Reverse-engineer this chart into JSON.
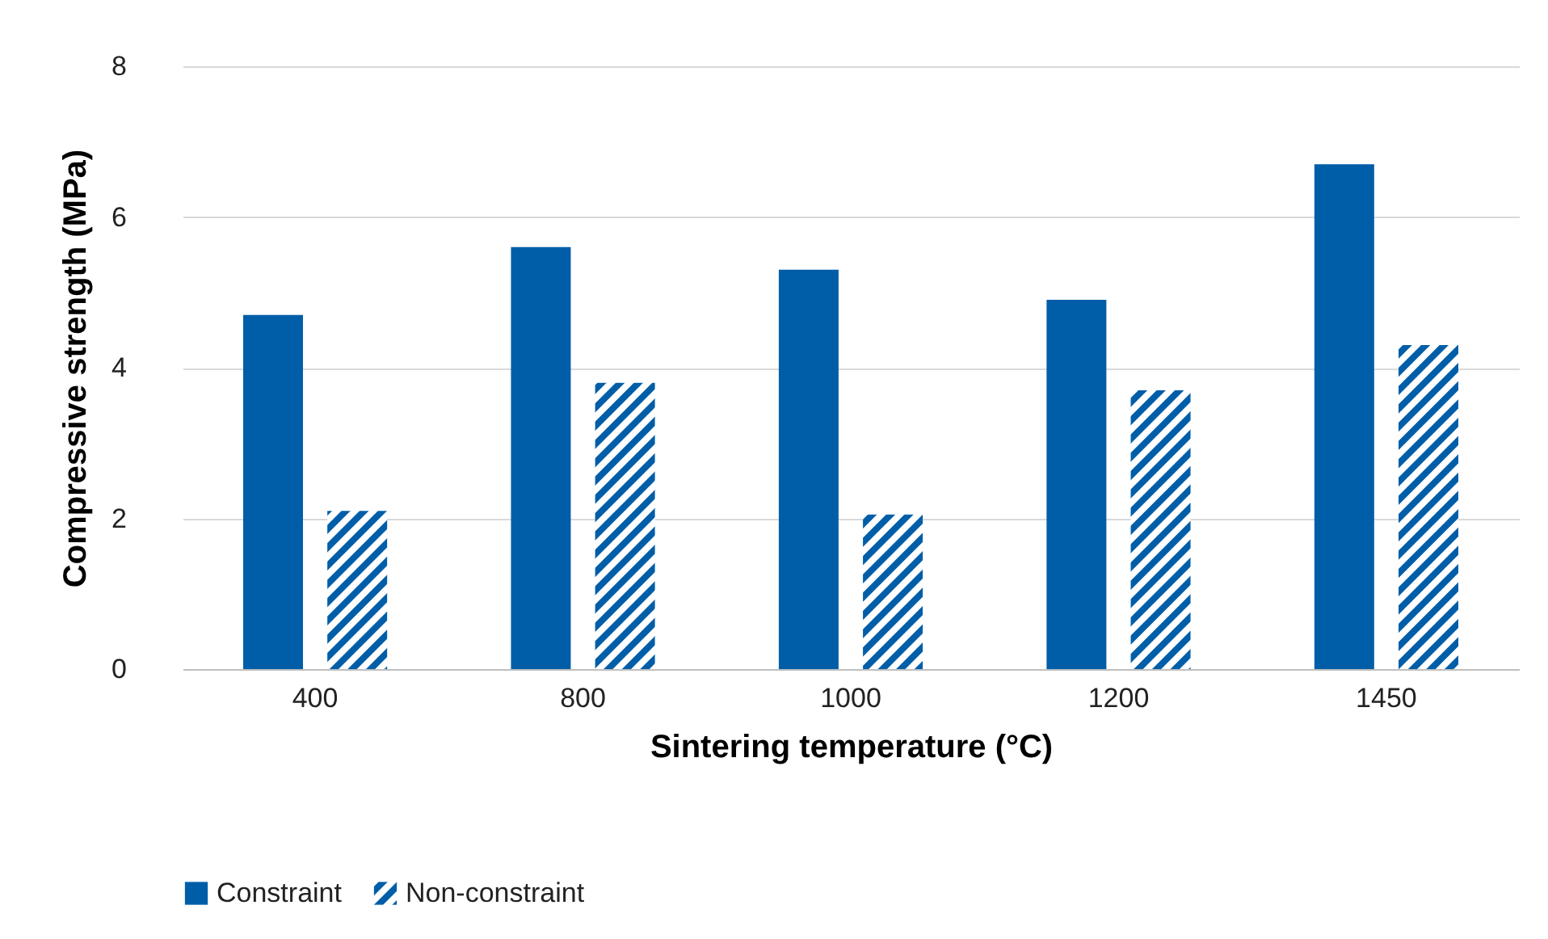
{
  "chart_data": {
    "type": "bar",
    "xlabel": "Sintering temperature (°C)",
    "ylabel": "Compressive strength (MPa)",
    "categories": [
      "400",
      "800",
      "1000",
      "1200",
      "1450"
    ],
    "series": [
      {
        "name": "Constraint",
        "color": "#005ea8",
        "values": [
          4.7,
          5.6,
          5.3,
          4.9,
          6.7
        ]
      },
      {
        "name": "Non-constraint",
        "color": "#005ea8",
        "values": [
          2.1,
          3.8,
          2.05,
          3.7,
          4.3
        ]
      }
    ],
    "ylim": [
      0,
      8
    ],
    "yticks": [
      0,
      2,
      4,
      6,
      8
    ],
    "grid": "y",
    "legend": "bottom"
  }
}
